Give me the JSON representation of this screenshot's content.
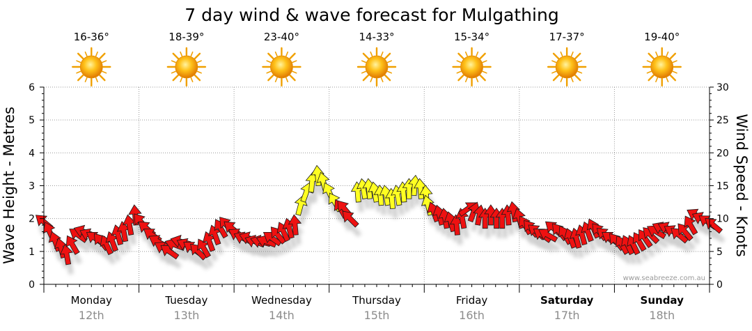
{
  "chart_data": {
    "type": "line",
    "title": "7 day wind & wave forecast for Mulgathing",
    "ylabel_left": "Wave Height - Metres",
    "ylabel_right": "Wind Speed - Knots",
    "ylim_left": [
      0,
      6
    ],
    "ylim_right": [
      0,
      30
    ],
    "yticks_left": [
      "0",
      "1",
      "2",
      "3",
      "4",
      "5",
      "6"
    ],
    "yticks_right": [
      "0",
      "5",
      "10",
      "15",
      "20",
      "25",
      "30"
    ],
    "grid": true,
    "watermark": "www.seabreeze.com.au",
    "days": [
      {
        "name": "Monday",
        "date": "12th",
        "temp": "16-36°",
        "bold": false
      },
      {
        "name": "Tuesday",
        "date": "13th",
        "temp": "18-39°",
        "bold": false
      },
      {
        "name": "Wednesday",
        "date": "14th",
        "temp": "23-40°",
        "bold": false
      },
      {
        "name": "Thursday",
        "date": "15th",
        "temp": "14-33°",
        "bold": false
      },
      {
        "name": "Friday",
        "date": "16th",
        "temp": "15-34°",
        "bold": false
      },
      {
        "name": "Saturday",
        "date": "17th",
        "temp": "17-37°",
        "bold": true
      },
      {
        "name": "Sunday",
        "date": "18th",
        "temp": "19-40°",
        "bold": true
      }
    ],
    "series": [
      {
        "name": "Wind speed (knots) with direction",
        "x_unit": "day index",
        "points": [
          {
            "x": 0.0,
            "y": 9.5,
            "dir": 130
          },
          {
            "x": 0.06,
            "y": 8.0,
            "dir": 155
          },
          {
            "x": 0.12,
            "y": 6.5,
            "dir": 160
          },
          {
            "x": 0.18,
            "y": 5.5,
            "dir": 165
          },
          {
            "x": 0.24,
            "y": 4.5,
            "dir": 170
          },
          {
            "x": 0.3,
            "y": 6.0,
            "dir": 150
          },
          {
            "x": 0.36,
            "y": 7.5,
            "dir": 125
          },
          {
            "x": 0.42,
            "y": 8.0,
            "dir": 110
          },
          {
            "x": 0.48,
            "y": 7.5,
            "dir": 115
          },
          {
            "x": 0.54,
            "y": 7.0,
            "dir": 125
          },
          {
            "x": 0.6,
            "y": 6.5,
            "dir": 140
          },
          {
            "x": 0.66,
            "y": 6.0,
            "dir": 155
          },
          {
            "x": 0.72,
            "y": 6.5,
            "dir": 160
          },
          {
            "x": 0.78,
            "y": 7.5,
            "dir": 165
          },
          {
            "x": 0.84,
            "y": 8.0,
            "dir": 170
          },
          {
            "x": 0.9,
            "y": 9.0,
            "dir": 170
          },
          {
            "x": 0.96,
            "y": 10.5,
            "dir": 175
          },
          {
            "x": 1.02,
            "y": 9.5,
            "dir": 140
          },
          {
            "x": 1.08,
            "y": 8.5,
            "dir": 130
          },
          {
            "x": 1.14,
            "y": 7.5,
            "dir": 125
          },
          {
            "x": 1.2,
            "y": 6.5,
            "dir": 120
          },
          {
            "x": 1.26,
            "y": 5.5,
            "dir": 120
          },
          {
            "x": 1.32,
            "y": 5.0,
            "dir": 125
          },
          {
            "x": 1.38,
            "y": 6.0,
            "dir": 110
          },
          {
            "x": 1.44,
            "y": 6.5,
            "dir": 105
          },
          {
            "x": 1.5,
            "y": 6.0,
            "dir": 115
          },
          {
            "x": 1.56,
            "y": 5.5,
            "dir": 125
          },
          {
            "x": 1.62,
            "y": 5.0,
            "dir": 135
          },
          {
            "x": 1.68,
            "y": 5.5,
            "dir": 150
          },
          {
            "x": 1.74,
            "y": 6.5,
            "dir": 160
          },
          {
            "x": 1.8,
            "y": 7.5,
            "dir": 160
          },
          {
            "x": 1.86,
            "y": 8.5,
            "dir": 150
          },
          {
            "x": 1.92,
            "y": 9.0,
            "dir": 140
          },
          {
            "x": 1.98,
            "y": 8.5,
            "dir": 130
          },
          {
            "x": 2.04,
            "y": 7.5,
            "dir": 120
          },
          {
            "x": 2.1,
            "y": 7.0,
            "dir": 115
          },
          {
            "x": 2.16,
            "y": 7.0,
            "dir": 110
          },
          {
            "x": 2.22,
            "y": 6.5,
            "dir": 110
          },
          {
            "x": 2.28,
            "y": 6.5,
            "dir": 105
          },
          {
            "x": 2.34,
            "y": 6.5,
            "dir": 110
          },
          {
            "x": 2.4,
            "y": 7.0,
            "dir": 125
          },
          {
            "x": 2.46,
            "y": 7.5,
            "dir": 140
          },
          {
            "x": 2.52,
            "y": 8.0,
            "dir": 155
          },
          {
            "x": 2.58,
            "y": 8.5,
            "dir": 165
          },
          {
            "x": 2.64,
            "y": 9.0,
            "dir": 175
          },
          {
            "x": 2.7,
            "y": 12.0,
            "dir": 195
          },
          {
            "x": 2.76,
            "y": 14.0,
            "dir": 200
          },
          {
            "x": 2.82,
            "y": 15.5,
            "dir": 185
          },
          {
            "x": 2.88,
            "y": 16.5,
            "dir": 175
          },
          {
            "x": 2.94,
            "y": 15.5,
            "dir": 165
          },
          {
            "x": 3.0,
            "y": 14.0,
            "dir": 155
          },
          {
            "x": 3.06,
            "y": 12.5,
            "dir": 150
          },
          {
            "x": 3.12,
            "y": 11.5,
            "dir": 150
          },
          {
            "x": 3.16,
            "y": 11.5,
            "dir": 140
          },
          {
            "x": 3.22,
            "y": 10.0,
            "dir": 135
          },
          {
            "x": 3.3,
            "y": 14.0,
            "dir": 175
          },
          {
            "x": 3.36,
            "y": 14.5,
            "dir": 170
          },
          {
            "x": 3.42,
            "y": 14.5,
            "dir": 175
          },
          {
            "x": 3.48,
            "y": 14.0,
            "dir": 170
          },
          {
            "x": 3.54,
            "y": 13.5,
            "dir": 175
          },
          {
            "x": 3.6,
            "y": 13.5,
            "dir": 170
          },
          {
            "x": 3.66,
            "y": 13.0,
            "dir": 175
          },
          {
            "x": 3.72,
            "y": 13.5,
            "dir": 170
          },
          {
            "x": 3.78,
            "y": 14.0,
            "dir": 175
          },
          {
            "x": 3.84,
            "y": 14.5,
            "dir": 180
          },
          {
            "x": 3.9,
            "y": 15.0,
            "dir": 185
          },
          {
            "x": 3.96,
            "y": 14.5,
            "dir": 175
          },
          {
            "x": 4.02,
            "y": 13.5,
            "dir": 175
          },
          {
            "x": 4.04,
            "y": 12.0,
            "dir": 165
          },
          {
            "x": 4.1,
            "y": 11.0,
            "dir": 160
          },
          {
            "x": 4.16,
            "y": 10.5,
            "dir": 165
          },
          {
            "x": 4.22,
            "y": 10.0,
            "dir": 170
          },
          {
            "x": 4.28,
            "y": 9.5,
            "dir": 165
          },
          {
            "x": 4.34,
            "y": 9.0,
            "dir": 175
          },
          {
            "x": 4.4,
            "y": 10.0,
            "dir": 170
          },
          {
            "x": 4.46,
            "y": 11.5,
            "dir": 235
          },
          {
            "x": 4.52,
            "y": 11.0,
            "dir": 200
          },
          {
            "x": 4.58,
            "y": 10.5,
            "dir": 190
          },
          {
            "x": 4.64,
            "y": 10.0,
            "dir": 180
          },
          {
            "x": 4.7,
            "y": 10.5,
            "dir": 180
          },
          {
            "x": 4.76,
            "y": 10.0,
            "dir": 180
          },
          {
            "x": 4.82,
            "y": 10.0,
            "dir": 180
          },
          {
            "x": 4.88,
            "y": 10.5,
            "dir": 175
          },
          {
            "x": 4.94,
            "y": 11.0,
            "dir": 170
          },
          {
            "x": 5.0,
            "y": 10.0,
            "dir": 165
          },
          {
            "x": 5.06,
            "y": 9.0,
            "dir": 150
          },
          {
            "x": 5.12,
            "y": 8.5,
            "dir": 140
          },
          {
            "x": 5.18,
            "y": 8.0,
            "dir": 130
          },
          {
            "x": 5.24,
            "y": 7.5,
            "dir": 125
          },
          {
            "x": 5.3,
            "y": 7.5,
            "dir": 120
          },
          {
            "x": 5.36,
            "y": 8.5,
            "dir": 130
          },
          {
            "x": 5.42,
            "y": 8.0,
            "dir": 140
          },
          {
            "x": 5.48,
            "y": 7.5,
            "dir": 150
          },
          {
            "x": 5.54,
            "y": 7.0,
            "dir": 160
          },
          {
            "x": 5.6,
            "y": 7.0,
            "dir": 165
          },
          {
            "x": 5.66,
            "y": 7.5,
            "dir": 165
          },
          {
            "x": 5.72,
            "y": 8.0,
            "dir": 160
          },
          {
            "x": 5.78,
            "y": 8.5,
            "dir": 155
          },
          {
            "x": 5.84,
            "y": 8.0,
            "dir": 140
          },
          {
            "x": 5.9,
            "y": 7.5,
            "dir": 130
          },
          {
            "x": 5.96,
            "y": 7.0,
            "dir": 125
          },
          {
            "x": 6.02,
            "y": 6.5,
            "dir": 140
          },
          {
            "x": 6.08,
            "y": 6.0,
            "dir": 150
          },
          {
            "x": 6.14,
            "y": 6.0,
            "dir": 155
          },
          {
            "x": 6.2,
            "y": 6.0,
            "dir": 155
          },
          {
            "x": 6.26,
            "y": 6.5,
            "dir": 150
          },
          {
            "x": 6.32,
            "y": 7.0,
            "dir": 145
          },
          {
            "x": 6.38,
            "y": 7.5,
            "dir": 135
          },
          {
            "x": 6.44,
            "y": 8.0,
            "dir": 120
          },
          {
            "x": 6.5,
            "y": 8.5,
            "dir": 115
          },
          {
            "x": 6.56,
            "y": 8.5,
            "dir": 115
          },
          {
            "x": 6.62,
            "y": 8.0,
            "dir": 120
          },
          {
            "x": 6.68,
            "y": 7.5,
            "dir": 130
          },
          {
            "x": 6.74,
            "y": 8.0,
            "dir": 140
          },
          {
            "x": 6.8,
            "y": 9.0,
            "dir": 150
          },
          {
            "x": 6.86,
            "y": 10.5,
            "dir": 120
          },
          {
            "x": 6.92,
            "y": 10.0,
            "dir": 115
          },
          {
            "x": 6.98,
            "y": 9.5,
            "dir": 125
          },
          {
            "x": 7.04,
            "y": 9.0,
            "dir": 130
          }
        ]
      }
    ],
    "color_bands": [
      {
        "threshold_knots": 12,
        "below": "#ee1111",
        "at_or_above": "#ffff22"
      }
    ]
  }
}
